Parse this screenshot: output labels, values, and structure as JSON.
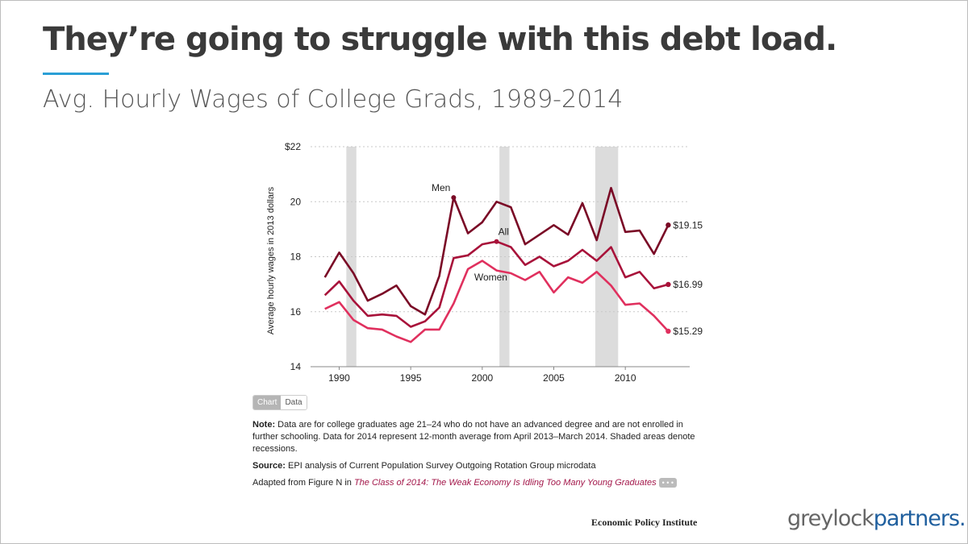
{
  "slide": {
    "title": "They’re going to struggle with this debt load.",
    "subtitle": "Avg. Hourly Wages of College Grads, 1989-2014"
  },
  "toggle": {
    "chart_label": "Chart",
    "data_label": "Data"
  },
  "notes": {
    "note_label": "Note:",
    "note_text": "Data are for college graduates age 21–24 who do not have an advanced degree and are not enrolled in further schooling. Data for 2014 represent 12-month average from April 2013–March 2014. Shaded areas denote recessions.",
    "source_label": "Source:",
    "source_text": "EPI analysis of Current Population Survey Outgoing Rotation Group microdata",
    "adapted_prefix": "Adapted from Figure N in ",
    "adapted_link": "The Class of 2014: The Weak Economy Is Idling Too Many Young Graduates",
    "more_label": "• • •"
  },
  "footer": {
    "publisher": "Economic Policy Institute",
    "brand_part1": "greylock",
    "brand_part2": "partners."
  },
  "colors": {
    "men": "#7a0a26",
    "all": "#a8123a",
    "women": "#e0305e",
    "recession": "#dcdcdc",
    "accent": "#2a9fd6"
  },
  "chart_data": {
    "type": "line",
    "ylabel": "Average hourly wages in 2013 dollars",
    "xlabel": "",
    "ylim": [
      14,
      22
    ],
    "xlim": [
      1988,
      2014.5
    ],
    "y_ticks": [
      14,
      16,
      18,
      20,
      22
    ],
    "y_tick_labels": [
      "14",
      "16",
      "18",
      "20",
      "$22"
    ],
    "x_ticks": [
      1990,
      1995,
      2000,
      2005,
      2010
    ],
    "x_tick_labels": [
      "1990",
      "1995",
      "2000",
      "2005",
      "2010"
    ],
    "grid": true,
    "recessions": [
      [
        1990.5,
        1991.2
      ],
      [
        2001.2,
        2001.9
      ],
      [
        2007.9,
        2009.5
      ]
    ],
    "x": [
      1989,
      1990,
      1991,
      1992,
      1993,
      1994,
      1995,
      1996,
      1997,
      1998,
      1999,
      2000,
      2001,
      2002,
      2003,
      2004,
      2005,
      2006,
      2007,
      2008,
      2009,
      2010,
      2011,
      2012,
      2013
    ],
    "series": [
      {
        "name": "Men",
        "color_key": "men",
        "end_label": "$19.15",
        "values": [
          17.25,
          18.15,
          17.4,
          16.4,
          16.65,
          16.95,
          16.2,
          15.9,
          17.3,
          20.15,
          18.85,
          19.25,
          20.0,
          19.8,
          18.45,
          18.8,
          19.15,
          18.8,
          19.95,
          18.6,
          20.5,
          18.9,
          18.95,
          18.1,
          19.15
        ]
      },
      {
        "name": "All",
        "color_key": "all",
        "end_label": "$16.99",
        "values": [
          16.6,
          17.1,
          16.4,
          15.85,
          15.9,
          15.85,
          15.45,
          15.65,
          16.15,
          17.95,
          18.05,
          18.45,
          18.55,
          18.35,
          17.7,
          18.0,
          17.65,
          17.85,
          18.25,
          17.85,
          18.35,
          17.25,
          17.45,
          16.85,
          16.99
        ]
      },
      {
        "name": "Women",
        "color_key": "women",
        "end_label": "$15.29",
        "values": [
          16.1,
          16.35,
          15.7,
          15.4,
          15.35,
          15.1,
          14.9,
          15.35,
          15.35,
          16.3,
          17.55,
          17.85,
          17.5,
          17.4,
          17.15,
          17.45,
          16.7,
          17.25,
          17.05,
          17.45,
          16.95,
          16.25,
          16.3,
          15.85,
          15.29
        ]
      }
    ],
    "annotations": [
      {
        "text": "Men",
        "x": 1998,
        "y": 20.15
      },
      {
        "text": "All",
        "x": 2001,
        "y": 18.55
      },
      {
        "text": "Women",
        "x": 2000,
        "y": 17.55
      }
    ]
  }
}
